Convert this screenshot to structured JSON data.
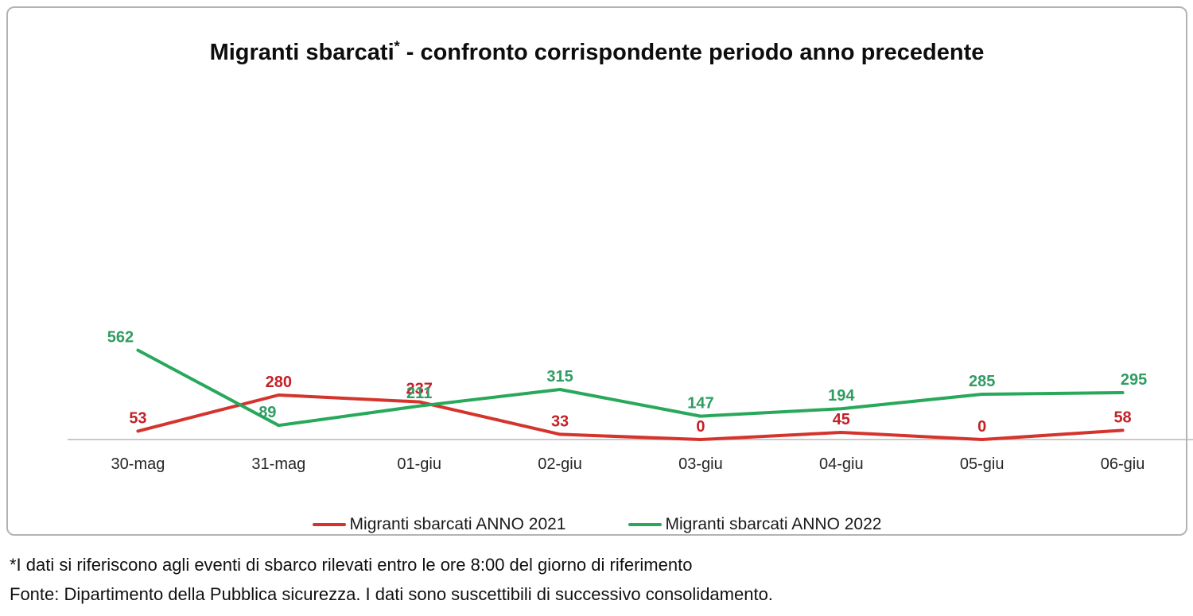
{
  "title": {
    "text": "Migranti sbarcati",
    "superscript": "*",
    "rest": " - confronto corrispondente periodo anno precedente"
  },
  "chart_data": {
    "type": "line",
    "title": "Migranti sbarcati* - confronto corrispondente periodo anno precedente",
    "categories": [
      "30-mag",
      "31-mag",
      "01-giu",
      "02-giu",
      "03-giu",
      "04-giu",
      "05-giu",
      "06-giu"
    ],
    "series": [
      {
        "name": "Migranti sbarcati ANNO 2021",
        "values": [
          53,
          280,
          237,
          33,
          0,
          45,
          0,
          58
        ],
        "line_color": "#d4342c",
        "label_color": "#c32127"
      },
      {
        "name": "Migranti sbarcati ANNO 2022",
        "values": [
          562,
          89,
          211,
          315,
          147,
          194,
          285,
          295
        ],
        "line_color": "#28a85a",
        "label_color": "#2f9c63"
      }
    ],
    "ylim": [
      0,
      2200
    ],
    "grid": false,
    "y_axis_visible": false,
    "x_axis_line_color": "#b5b5b5",
    "data_labels": true,
    "legend_position": "bottom"
  },
  "footnotes": {
    "line1": "*I dati si riferiscono agli eventi di sbarco rilevati entro le ore 8:00 del giorno di riferimento",
    "line2": "Fonte: Dipartimento della Pubblica sicurezza. I dati sono suscettibili di successivo consolidamento."
  }
}
